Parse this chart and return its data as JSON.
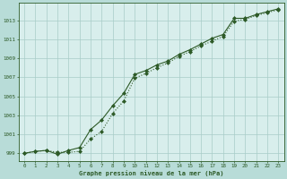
{
  "background_color": "#b8dcd8",
  "plot_bg_color": "#d8eeec",
  "grid_color": "#a8ccc8",
  "line_color": "#2d5a27",
  "title": "Graphe pression niveau de la mer (hPa)",
  "xlabel_values": [
    0,
    1,
    2,
    3,
    4,
    5,
    6,
    7,
    8,
    9,
    10,
    11,
    12,
    13,
    14,
    15,
    16,
    17,
    18,
    19,
    20,
    21,
    22,
    23
  ],
  "ylim": [
    998.2,
    1014.8
  ],
  "yticks": [
    999,
    1001,
    1003,
    1005,
    1007,
    1009,
    1011,
    1013
  ],
  "line1_x": [
    0,
    1,
    2,
    3,
    4,
    5,
    6,
    7,
    8,
    9,
    10,
    11,
    12,
    13,
    14,
    15,
    16,
    17,
    18,
    19,
    20,
    21,
    22,
    23
  ],
  "line1_y": [
    999.0,
    999.2,
    999.3,
    998.9,
    999.3,
    999.6,
    1001.5,
    1002.5,
    1004.0,
    1005.3,
    1007.3,
    1007.7,
    1008.3,
    1008.7,
    1009.4,
    1009.9,
    1010.5,
    1011.1,
    1011.5,
    1013.2,
    1013.2,
    1013.6,
    1013.9,
    1014.2
  ],
  "line2_x": [
    0,
    1,
    2,
    3,
    4,
    5,
    6,
    7,
    8,
    9,
    10,
    11,
    12,
    13,
    14,
    15,
    16,
    17,
    18,
    19,
    20,
    21,
    22,
    23
  ],
  "line2_y": [
    999.0,
    999.2,
    999.3,
    999.1,
    999.1,
    999.2,
    1000.5,
    1001.3,
    1003.2,
    1004.5,
    1006.9,
    1007.4,
    1008.0,
    1008.5,
    1009.2,
    1009.7,
    1010.3,
    1010.8,
    1011.3,
    1012.9,
    1013.1,
    1013.5,
    1013.8,
    1014.1
  ]
}
